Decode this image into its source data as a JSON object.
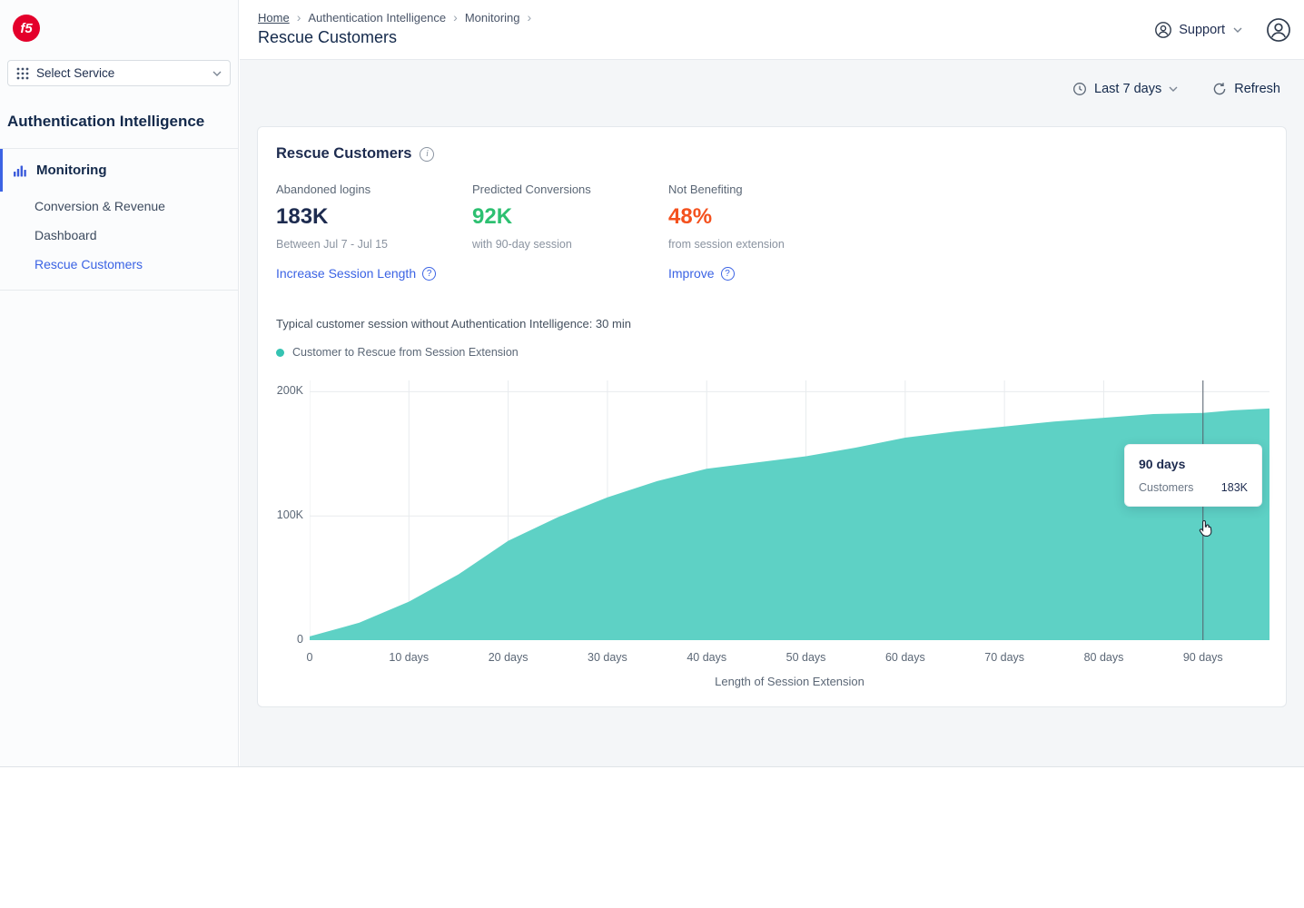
{
  "theme": {
    "f5_red": "#E4002B",
    "accent": "#3B63E4",
    "green": "#2DC071",
    "red_orange": "#F4511E",
    "navy": "#13294B",
    "teal": "#5ED1C5",
    "teal_dark": "#35C3B2",
    "bg": "#F4F6F8"
  },
  "sidebar": {
    "logo_text": "f5",
    "service_selector_label": "Select Service",
    "section_title": "Authentication Intelligence",
    "nav_monitoring": "Monitoring",
    "nav_items": [
      {
        "label": "Conversion & Revenue",
        "active": false
      },
      {
        "label": "Dashboard",
        "active": false
      },
      {
        "label": "Rescue Customers",
        "active": true
      }
    ]
  },
  "header": {
    "breadcrumb": {
      "home": "Home",
      "level1": "Authentication Intelligence",
      "level2": "Monitoring",
      "separator": "›"
    },
    "title": "Rescue Customers",
    "support_label": "Support"
  },
  "toolbar": {
    "time_range": "Last 7 days",
    "refresh_label": "Refresh"
  },
  "card": {
    "title": "Rescue Customers",
    "stats": [
      {
        "label": "Abandoned logins",
        "value": "183K",
        "sub": "Between Jul 7 - Jul 15",
        "link": "Increase Session Length"
      },
      {
        "label": "Predicted Conversions",
        "value": "92K",
        "sub": "with 90-day session",
        "link": ""
      },
      {
        "label": "Not Benefiting",
        "value": "48%",
        "sub": "from session extension",
        "link": "Improve"
      }
    ],
    "session_note": "Typical customer session without Authentication Intelligence: 30 min",
    "legend_label": "Customer to Rescue from Session Extension",
    "tooltip": {
      "title": "90 days",
      "row_label": "Customers",
      "row_value": "183K"
    }
  },
  "chart_data": {
    "type": "area",
    "title": "Customer to Rescue from Session Extension",
    "xlabel": "Length of Session Extension",
    "ylabel": "Customers",
    "x_unit": "days",
    "x": [
      0,
      5,
      10,
      15,
      20,
      25,
      30,
      35,
      40,
      45,
      50,
      55,
      60,
      65,
      70,
      75,
      80,
      85,
      90,
      93,
      96.7
    ],
    "values": [
      3000,
      14000,
      31000,
      53000,
      80000,
      99000,
      115000,
      128000,
      138000,
      143000,
      148000,
      155000,
      163000,
      168000,
      172000,
      176000,
      179000,
      182000,
      183000,
      185000,
      186500
    ],
    "x_ticks": [
      0,
      10,
      20,
      30,
      40,
      50,
      60,
      70,
      80,
      90
    ],
    "x_tick_labels": [
      "0",
      "10 days",
      "20 days",
      "30 days",
      "40 days",
      "50 days",
      "60 days",
      "70 days",
      "80 days",
      "90 days"
    ],
    "y_ticks": [
      0,
      100000,
      200000
    ],
    "y_tick_labels": [
      "0",
      "100K",
      "200K"
    ],
    "xlim": [
      0,
      96.7
    ],
    "ylim": [
      0,
      212000
    ],
    "grid": true,
    "cursor_x": 90,
    "cursor_value": 183000,
    "area_color": "#5ED1C5",
    "legend_position": "top-left"
  }
}
